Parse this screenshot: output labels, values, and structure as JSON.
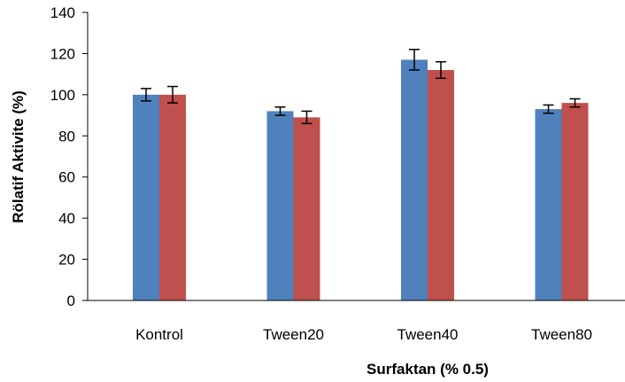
{
  "chart_data": {
    "type": "bar",
    "title": "",
    "xlabel": "Surfaktan (% 0.5)",
    "ylabel": "Rölatif Aktivite (%)",
    "categories": [
      "Kontrol",
      "Tween20",
      "Tween40",
      "Tween80"
    ],
    "ylim": [
      0,
      140
    ],
    "yticks": [
      0,
      20,
      40,
      60,
      80,
      100,
      120,
      140
    ],
    "grid": false,
    "legend": "none",
    "series": [
      {
        "color": "#4f81bd",
        "values": [
          100,
          92,
          117,
          93
        ],
        "errors": [
          3,
          2,
          5,
          2
        ]
      },
      {
        "color": "#c0504d",
        "values": [
          100,
          89,
          112,
          96
        ],
        "errors": [
          4,
          3,
          4,
          2
        ]
      }
    ]
  }
}
